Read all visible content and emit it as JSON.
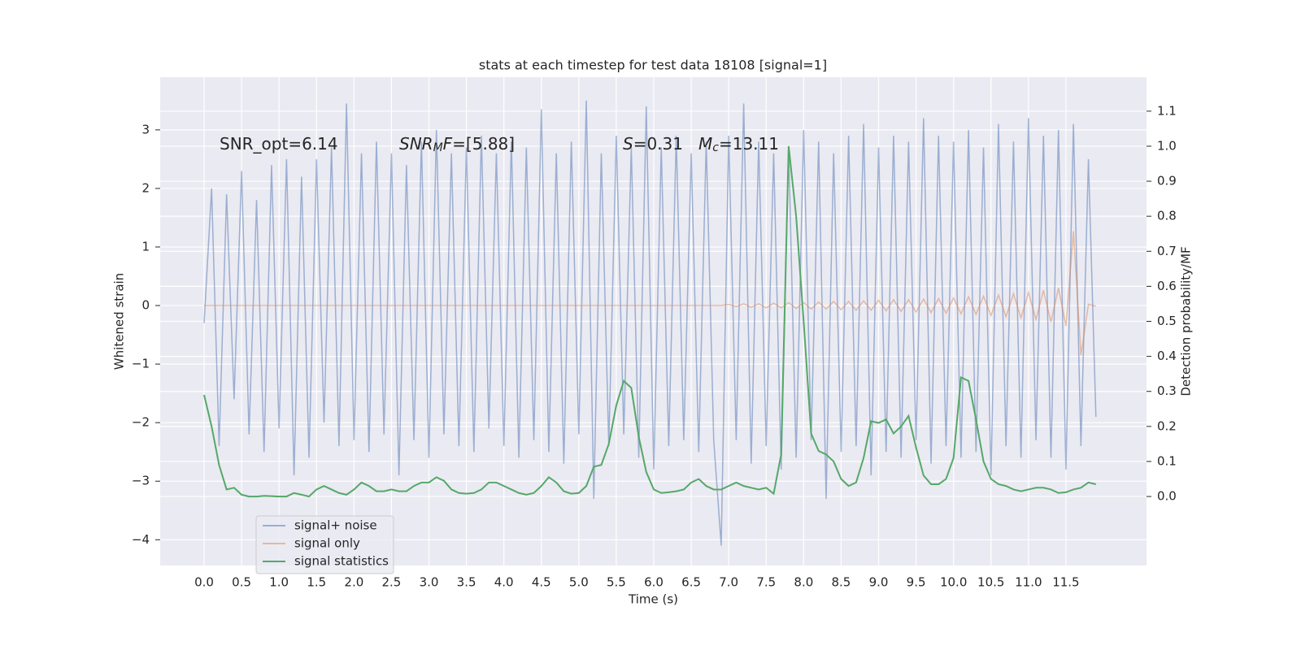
{
  "chart_data": {
    "type": "line",
    "title": "stats at each timestep for test data 18108 [signal=1]",
    "xlabel": "Time (s)",
    "ylabel": "Whitened strain",
    "y2label": "Detection probability/MF",
    "annotations": [
      {
        "parts": [
          {
            "text": "SNR_opt=6.14"
          }
        ]
      },
      {
        "parts": [
          {
            "text": "SNR",
            "italic": true
          },
          {
            "text": "M",
            "italic": true,
            "sub": true
          },
          {
            "text": "F",
            "italic": true
          },
          {
            "text": "=[5.88]"
          }
        ]
      },
      {
        "parts": [
          {
            "text": "S",
            "italic": true
          },
          {
            "text": "=0.31"
          }
        ]
      },
      {
        "parts": [
          {
            "text": "M",
            "italic": true
          },
          {
            "text": "c",
            "italic": true,
            "sub": true
          },
          {
            "text": "=13.11"
          }
        ]
      }
    ],
    "x": [
      0,
      0.1,
      0.2,
      0.3,
      0.4,
      0.5,
      0.6,
      0.7,
      0.8,
      0.9,
      1,
      1.1,
      1.2,
      1.3,
      1.4,
      1.5,
      1.6,
      1.7,
      1.8,
      1.9,
      2,
      2.1,
      2.2,
      2.3,
      2.4,
      2.5,
      2.6,
      2.7,
      2.8,
      2.9,
      3,
      3.1,
      3.2,
      3.3,
      3.4,
      3.5,
      3.6,
      3.7,
      3.8,
      3.9,
      4,
      4.1,
      4.2,
      4.3,
      4.4,
      4.5,
      4.6,
      4.7,
      4.8,
      4.9,
      5,
      5.1,
      5.2,
      5.3,
      5.4,
      5.5,
      5.6,
      5.7,
      5.8,
      5.9,
      6,
      6.1,
      6.2,
      6.3,
      6.4,
      6.5,
      6.6,
      6.7,
      6.8,
      6.9,
      7,
      7.1,
      7.2,
      7.3,
      7.4,
      7.5,
      7.6,
      7.7,
      7.8,
      7.9,
      8,
      8.1,
      8.2,
      8.3,
      8.4,
      8.5,
      8.6,
      8.7,
      8.8,
      8.9,
      9,
      9.1,
      9.2,
      9.3,
      9.4,
      9.5,
      9.6,
      9.7,
      9.8,
      9.9,
      10,
      10.1,
      10.2,
      10.3,
      10.4,
      10.5,
      10.6,
      10.7,
      10.8,
      10.9,
      11,
      11.1,
      11.2,
      11.3,
      11.4,
      11.5,
      11.6,
      11.7,
      11.8,
      11.9
    ],
    "series": [
      {
        "name": "signal+ noise",
        "color": "#4c72b0",
        "alpha": 0.5,
        "values": [
          -0.3,
          2.0,
          -2.4,
          1.9,
          -1.6,
          2.3,
          -2.2,
          1.8,
          -2.5,
          2.4,
          -2.1,
          2.5,
          -2.9,
          2.2,
          -2.6,
          2.5,
          -2.0,
          2.7,
          -2.4,
          3.45,
          -2.3,
          2.6,
          -2.5,
          2.8,
          -2.2,
          2.6,
          -2.9,
          2.4,
          -2.3,
          2.8,
          -2.6,
          3.0,
          -2.2,
          2.6,
          -2.4,
          2.7,
          -2.5,
          2.9,
          -2.1,
          2.6,
          -2.4,
          2.8,
          -2.6,
          2.7,
          -2.3,
          3.35,
          -2.5,
          2.6,
          -2.7,
          2.8,
          -2.2,
          3.5,
          -3.3,
          2.6,
          -2.4,
          2.9,
          -2.2,
          2.7,
          -2.6,
          3.4,
          -2.8,
          2.7,
          -2.4,
          2.9,
          -2.3,
          2.6,
          -2.5,
          2.8,
          -2.3,
          -4.1,
          2.9,
          -2.3,
          3.45,
          -2.7,
          2.8,
          -2.4,
          2.6,
          -2.8,
          2.7,
          -2.6,
          3.0,
          -2.3,
          2.8,
          -3.3,
          2.6,
          -2.5,
          2.9,
          -2.4,
          3.1,
          -2.9,
          2.7,
          -2.5,
          2.9,
          -2.6,
          2.8,
          -2.3,
          3.2,
          -2.7,
          2.9,
          -2.4,
          2.8,
          -2.6,
          3.0,
          -2.5,
          2.7,
          -2.9,
          3.1,
          -2.4,
          2.8,
          -2.6,
          3.2,
          -2.3,
          2.9,
          -2.6,
          3.0,
          -2.8,
          3.1,
          -2.4,
          2.5,
          -1.9
        ]
      },
      {
        "name": "signal only",
        "color": "#dd8452",
        "alpha": 0.5,
        "values": [
          0,
          0,
          0,
          0,
          0,
          0,
          0,
          0,
          0,
          0,
          0,
          0,
          0,
          0,
          0,
          0,
          0,
          0,
          0,
          0,
          0,
          0,
          0,
          0,
          0,
          0,
          0,
          0,
          0,
          0,
          0,
          0,
          0,
          0,
          0,
          0,
          0,
          0,
          0,
          0,
          0,
          0,
          0,
          0,
          0,
          0,
          0,
          0,
          0,
          0,
          0,
          0,
          0,
          0,
          0,
          0,
          0,
          0,
          0,
          0,
          0,
          0,
          0,
          0,
          0,
          0,
          0,
          0,
          0,
          0,
          0.02,
          -0.02,
          0.03,
          -0.03,
          0.03,
          -0.04,
          0.04,
          -0.04,
          0.05,
          -0.05,
          0.05,
          -0.06,
          0.06,
          -0.06,
          0.07,
          -0.07,
          0.07,
          -0.08,
          0.08,
          -0.08,
          0.09,
          -0.09,
          0.1,
          -0.1,
          0.1,
          -0.11,
          0.11,
          -0.12,
          0.12,
          -0.13,
          0.13,
          -0.14,
          0.15,
          -0.15,
          0.16,
          -0.17,
          0.18,
          -0.19,
          0.2,
          -0.21,
          0.22,
          -0.24,
          0.26,
          -0.28,
          0.3,
          -0.35,
          1.27,
          -0.85,
          0.02,
          -0.01
        ]
      },
      {
        "name": "signal statistics",
        "color": "#55a868",
        "alpha": 1,
        "axis": "y2",
        "values": [
          0.29,
          0.2,
          0.09,
          0.02,
          0.025,
          0.005,
          0.0,
          0.0,
          0.002,
          0.001,
          0.0,
          0.0,
          0.01,
          0.005,
          0.0,
          0.02,
          0.03,
          0.02,
          0.01,
          0.005,
          0.02,
          0.04,
          0.03,
          0.015,
          0.015,
          0.02,
          0.015,
          0.015,
          0.03,
          0.04,
          0.04,
          0.055,
          0.045,
          0.02,
          0.01,
          0.008,
          0.01,
          0.02,
          0.04,
          0.04,
          0.03,
          0.02,
          0.01,
          0.005,
          0.01,
          0.03,
          0.055,
          0.04,
          0.015,
          0.008,
          0.01,
          0.03,
          0.085,
          0.09,
          0.15,
          0.26,
          0.33,
          0.31,
          0.17,
          0.07,
          0.02,
          0.01,
          0.012,
          0.015,
          0.02,
          0.04,
          0.05,
          0.03,
          0.02,
          0.02,
          0.03,
          0.04,
          0.03,
          0.025,
          0.02,
          0.025,
          0.008,
          0.12,
          1.0,
          0.8,
          0.5,
          0.18,
          0.13,
          0.12,
          0.1,
          0.05,
          0.03,
          0.04,
          0.11,
          0.215,
          0.21,
          0.22,
          0.18,
          0.2,
          0.23,
          0.14,
          0.06,
          0.035,
          0.035,
          0.05,
          0.11,
          0.34,
          0.33,
          0.22,
          0.1,
          0.05,
          0.035,
          0.03,
          0.02,
          0.015,
          0.02,
          0.025,
          0.025,
          0.02,
          0.01,
          0.012,
          0.02,
          0.025,
          0.04,
          0.035
        ]
      }
    ],
    "xlim": [
      -0.586,
      12.575
    ],
    "xticks": [
      {
        "value": 0,
        "label": "0.0"
      },
      0.5,
      {
        "value": 1,
        "label": "1.0"
      },
      1.5,
      {
        "value": 2,
        "label": "2.0"
      },
      2.5,
      {
        "value": 3,
        "label": "3.0"
      },
      3.5,
      {
        "value": 4,
        "label": "4.0"
      },
      4.5,
      {
        "value": 5,
        "label": "5.0"
      },
      5.5,
      {
        "value": 6,
        "label": "6.0"
      },
      6.5,
      {
        "value": 7,
        "label": "7.0"
      },
      7.5,
      {
        "value": 8,
        "label": "8.0"
      },
      8.5,
      {
        "value": 9,
        "label": "9.0"
      },
      9.5,
      {
        "value": 10,
        "label": "10.0"
      },
      10.5,
      {
        "value": 11,
        "label": "11.0"
      },
      11.5
    ],
    "ylim": [
      -4.44,
      3.9
    ],
    "yticks": [
      {
        "value": -4,
        "label": "−4"
      },
      {
        "value": -3,
        "label": "−3"
      },
      {
        "value": -2,
        "label": "−2"
      },
      {
        "value": -1,
        "label": "−1"
      },
      0,
      1,
      2,
      3
    ],
    "y2lim": [
      -0.197,
      1.197
    ],
    "y2ticks": [
      {
        "value": 0,
        "label": "0.0"
      },
      0.1,
      0.2,
      0.3,
      0.4,
      0.5,
      0.6,
      0.7,
      0.8,
      0.9,
      {
        "value": 1,
        "label": "1.0"
      },
      1.1
    ],
    "grid": true,
    "legend": "lower left"
  }
}
